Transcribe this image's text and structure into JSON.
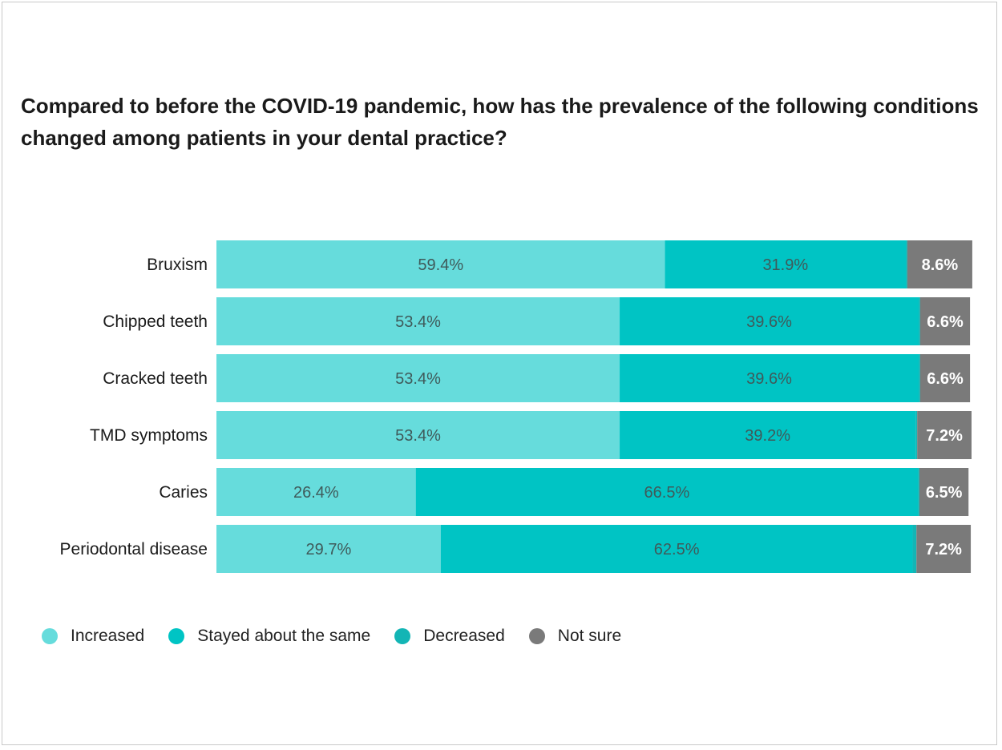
{
  "chart_data": {
    "type": "bar",
    "orientation": "horizontal",
    "stacked": true,
    "title": "Compared to before the COVID-19 pandemic, how has the prevalence of the following conditions changed among patients in your dental practice?",
    "categories": [
      "Bruxism",
      "Chipped teeth",
      "Cracked teeth",
      "TMD symptoms",
      "Caries",
      "Periodontal disease"
    ],
    "series": [
      {
        "name": "Increased",
        "color": "#66dcdc",
        "values": [
          59.4,
          53.4,
          53.4,
          53.4,
          26.4,
          29.7
        ],
        "labels": [
          "59.4%",
          "53.4%",
          "53.4%",
          "53.4%",
          "26.4%",
          "29.7%"
        ]
      },
      {
        "name": "Stayed about the same",
        "color": "#00c4c4",
        "values": [
          31.9,
          39.6,
          39.6,
          39.2,
          66.5,
          62.5
        ],
        "labels": [
          "31.9%",
          "39.6%",
          "39.6%",
          "39.2%",
          "66.5%",
          "62.5%"
        ]
      },
      {
        "name": "Decreased",
        "color": "#13b5b5",
        "values": [
          0.2,
          0.2,
          0.2,
          0.2,
          0.2,
          0.5
        ],
        "labels": [
          "",
          "",
          "",
          "",
          "",
          ""
        ]
      },
      {
        "name": "Not sure",
        "color": "#7a7a7a",
        "values": [
          8.6,
          6.6,
          6.6,
          7.2,
          6.5,
          7.2
        ],
        "labels": [
          "8.6%",
          "6.6%",
          "6.6%",
          "7.2%",
          "6.5%",
          "7.2%"
        ]
      }
    ],
    "xlim": [
      0,
      100
    ],
    "grid": false,
    "legend_position": "bottom-left"
  }
}
